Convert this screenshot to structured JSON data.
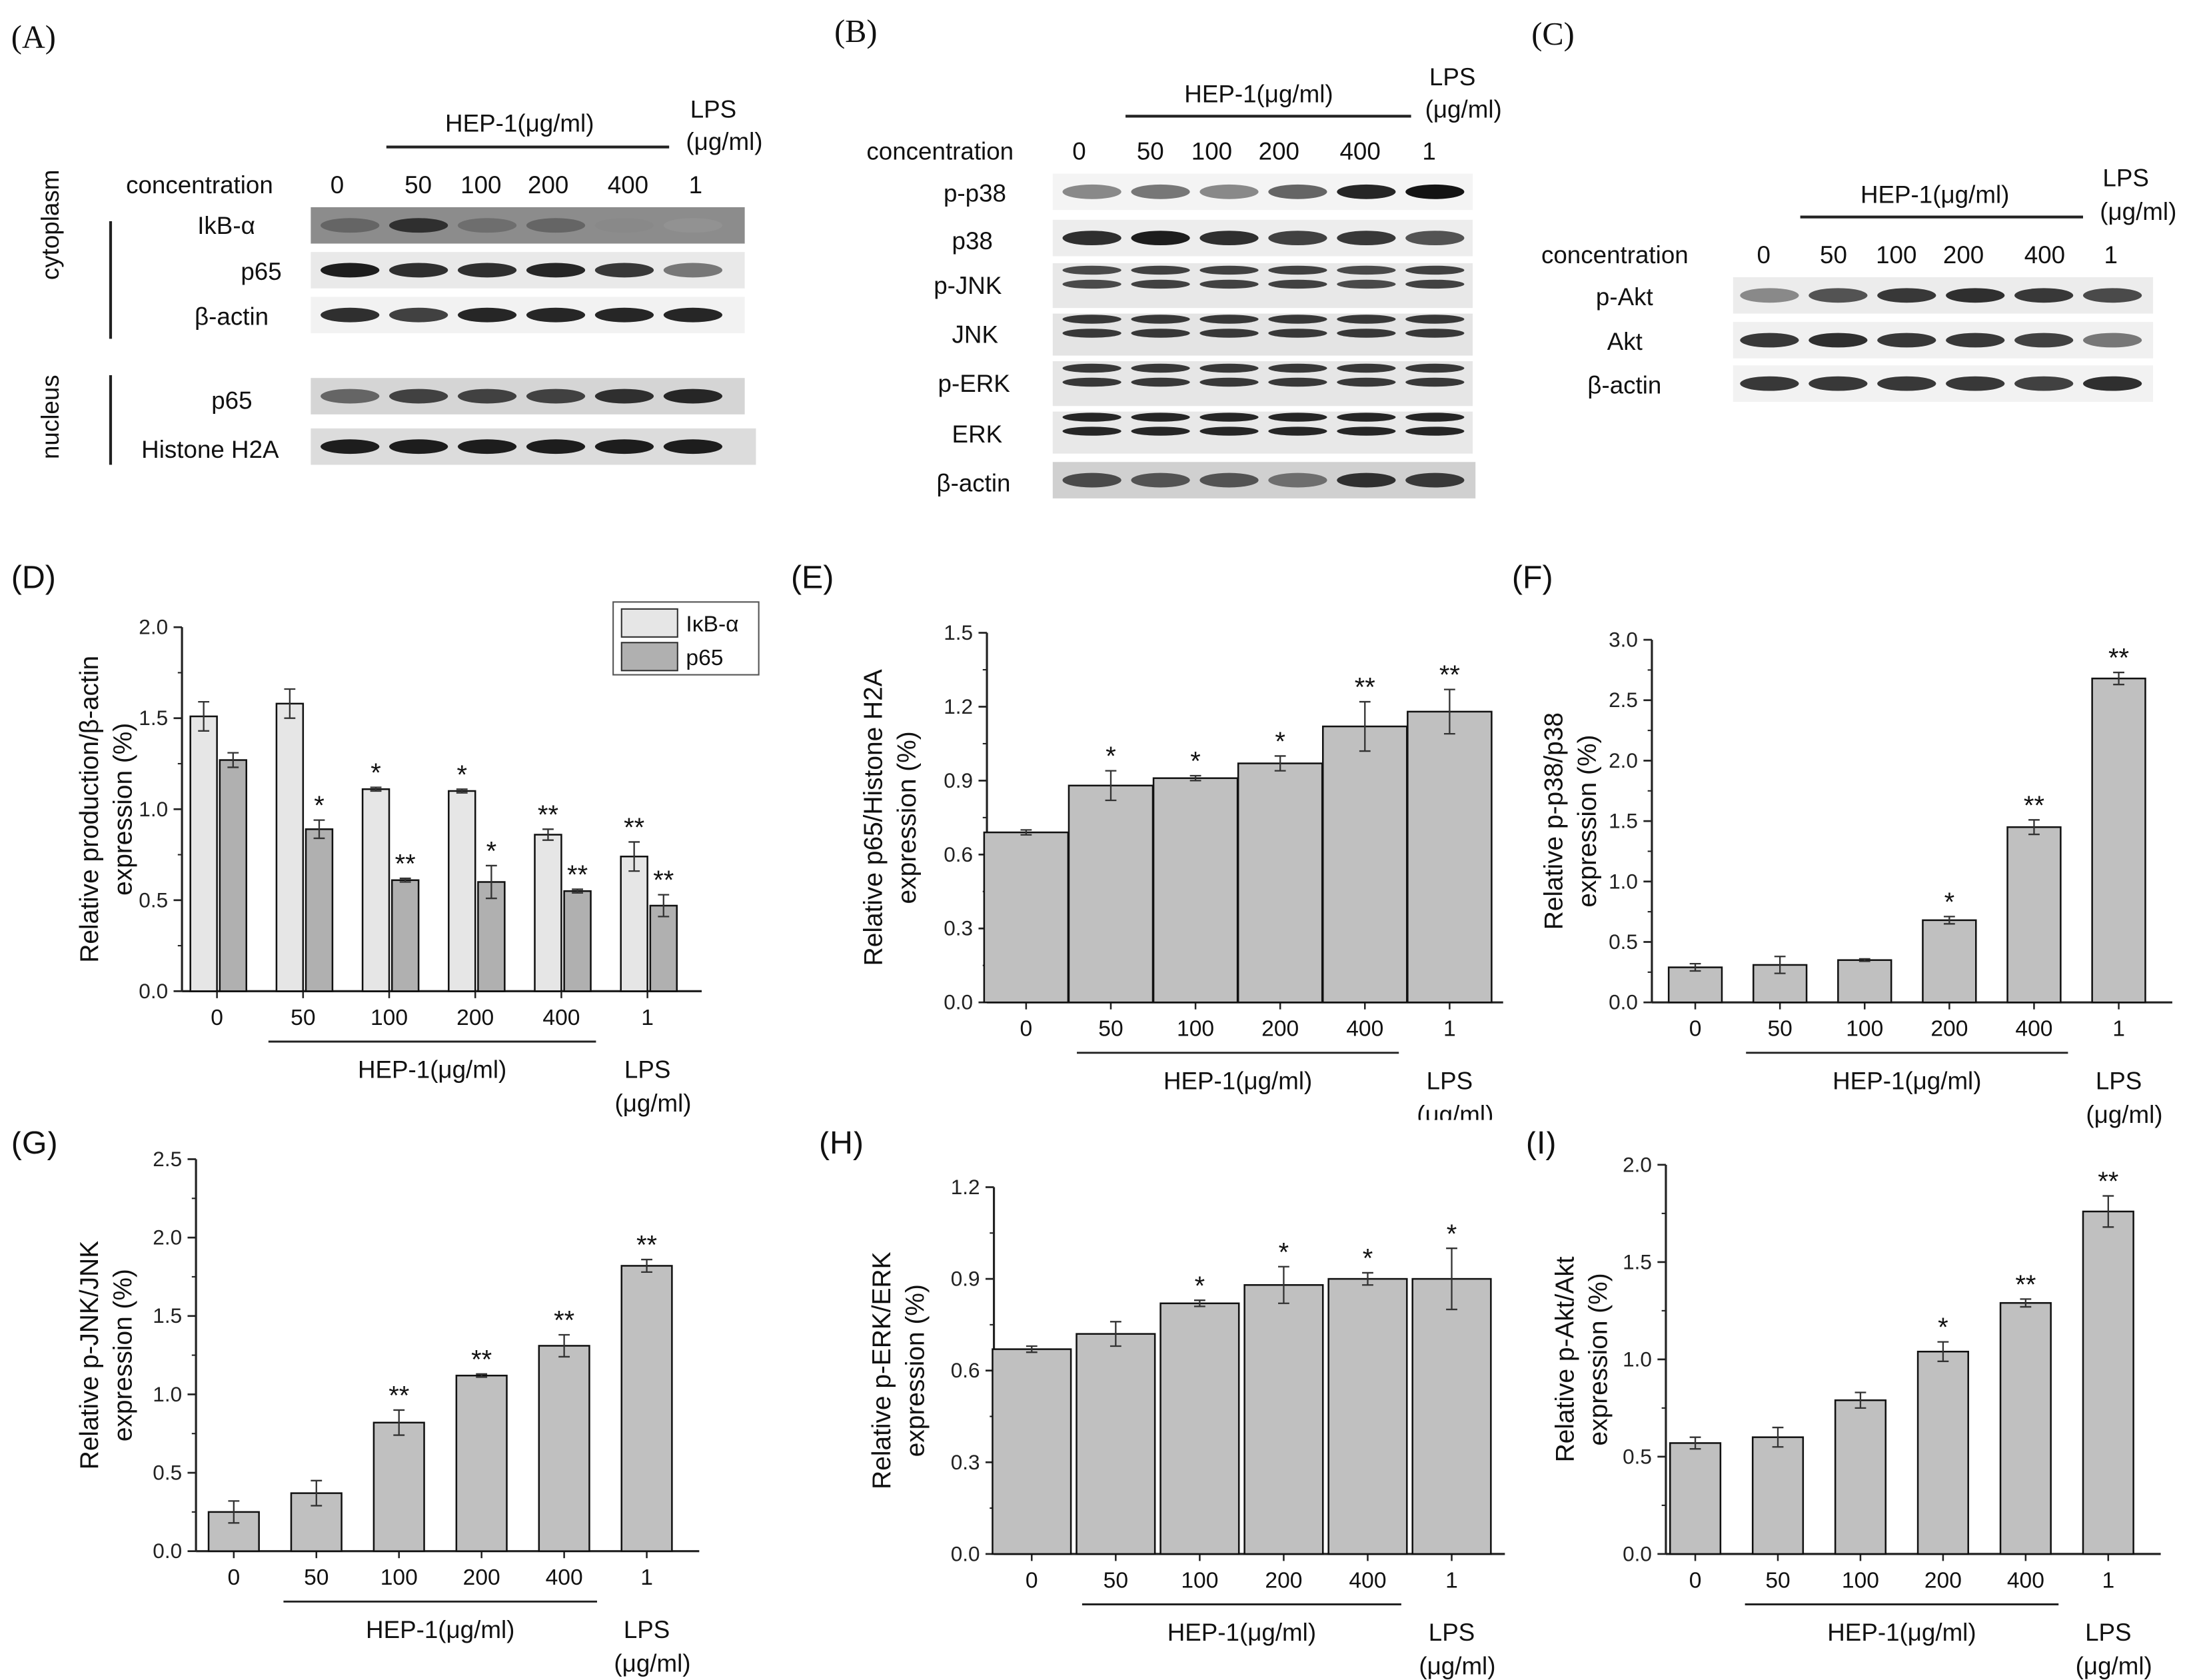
{
  "blot_a": {
    "panel": "(A)",
    "header": "HEP-1(μg/ml)",
    "lps_lines": [
      "LPS",
      "(μg/ml)"
    ],
    "row_title": "concentration",
    "conc": [
      "0",
      "50",
      "100",
      "200",
      "400",
      "1"
    ],
    "groups": [
      "cytoplasm",
      "nucleus"
    ],
    "bands": [
      "IkB-α",
      "p65",
      "β-actin",
      "p65",
      "Histone H2A"
    ]
  },
  "blot_b": {
    "panel": "(B)",
    "header": "HEP-1(μg/ml)",
    "lps_lines": [
      "LPS",
      "(μg/ml)"
    ],
    "row_title": "concentration",
    "conc": [
      "0",
      "50",
      "100",
      "200",
      "400",
      "1"
    ],
    "bands": [
      "p-p38",
      "p38",
      "p-JNK",
      "JNK",
      "p-ERK",
      "ERK",
      "β-actin"
    ]
  },
  "blot_c": {
    "panel": "(C)",
    "header": "HEP-1(μg/ml)",
    "lps_lines": [
      "LPS",
      "(μg/ml)"
    ],
    "row_title": "concentration",
    "conc": [
      "0",
      "50",
      "100",
      "200",
      "400",
      "1"
    ],
    "bands": [
      "p-Akt",
      "Akt",
      "β-actin"
    ]
  },
  "chart_data": [
    {
      "panel": "(D)",
      "type": "bar",
      "categories": [
        "0",
        "50",
        "100",
        "200",
        "400",
        "1"
      ],
      "group_label": "HEP-1(μg/ml)",
      "lps_lines": [
        "LPS",
        "(μg/ml)"
      ],
      "ylabel": [
        "Relative production/β-actin",
        "expression (%)"
      ],
      "ylim": [
        0,
        2.0
      ],
      "yticks": [
        "0.0",
        "0.5",
        "1.0",
        "1.5",
        "2.0"
      ],
      "series": [
        {
          "name": "IκB-α",
          "color": "#e6e6e6",
          "values": [
            1.51,
            1.58,
            1.11,
            1.1,
            0.86,
            0.74
          ],
          "errors": [
            0.08,
            0.08,
            0.01,
            0.01,
            0.03,
            0.08
          ],
          "sig": [
            "",
            "",
            "*",
            "*",
            "**",
            "**"
          ]
        },
        {
          "name": "p65",
          "color": "#b0b0b0",
          "values": [
            1.27,
            0.89,
            0.61,
            0.6,
            0.55,
            0.47
          ],
          "errors": [
            0.04,
            0.05,
            0.01,
            0.09,
            0.01,
            0.06
          ],
          "sig": [
            "",
            "*",
            "**",
            "*",
            "**",
            "**"
          ]
        }
      ]
    },
    {
      "panel": "(E)",
      "type": "bar",
      "categories": [
        "0",
        "50",
        "100",
        "200",
        "400",
        "1"
      ],
      "group_label": "HEP-1(μg/ml)",
      "lps_lines": [
        "LPS",
        "(μg/ml)"
      ],
      "ylabel": [
        "Relative p65/Histone H2A",
        "expression (%)"
      ],
      "ylim": [
        0,
        1.5
      ],
      "yticks": [
        "0.0",
        "0.3",
        "0.6",
        "0.9",
        "1.2",
        "1.5"
      ],
      "series": [
        {
          "name": "p65",
          "color": "#c0c0c0",
          "values": [
            0.69,
            0.88,
            0.91,
            0.97,
            1.12,
            1.18
          ],
          "errors": [
            0.01,
            0.06,
            0.01,
            0.03,
            0.1,
            0.09
          ],
          "sig": [
            "",
            "*",
            "*",
            "*",
            "**",
            "**"
          ]
        }
      ]
    },
    {
      "panel": "(F)",
      "type": "bar",
      "categories": [
        "0",
        "50",
        "100",
        "200",
        "400",
        "1"
      ],
      "group_label": "HEP-1(μg/ml)",
      "lps_lines": [
        "LPS",
        "(μg/ml)"
      ],
      "ylabel": [
        "Relative p-p38/p38",
        "expression (%)"
      ],
      "ylim": [
        0,
        3.0
      ],
      "yticks": [
        "0.0",
        "0.5",
        "1.0",
        "1.5",
        "2.0",
        "2.5",
        "3.0"
      ],
      "series": [
        {
          "name": "p-p38",
          "color": "#c0c0c0",
          "values": [
            0.29,
            0.31,
            0.35,
            0.68,
            1.45,
            2.68
          ],
          "errors": [
            0.03,
            0.07,
            0.01,
            0.03,
            0.06,
            0.05
          ],
          "sig": [
            "",
            "",
            "",
            "*",
            "**",
            "**"
          ]
        }
      ]
    },
    {
      "panel": "(G)",
      "type": "bar",
      "categories": [
        "0",
        "50",
        "100",
        "200",
        "400",
        "1"
      ],
      "group_label": "HEP-1(μg/ml)",
      "lps_lines": [
        "LPS",
        "(μg/ml)"
      ],
      "ylabel": [
        "Relative p-JNK/JNK",
        "expression (%)"
      ],
      "ylim": [
        0,
        2.5
      ],
      "yticks": [
        "0.0",
        "0.5",
        "1.0",
        "1.5",
        "2.0",
        "2.5"
      ],
      "series": [
        {
          "name": "p-JNK",
          "color": "#c0c0c0",
          "values": [
            0.25,
            0.37,
            0.82,
            1.12,
            1.31,
            1.82
          ],
          "errors": [
            0.07,
            0.08,
            0.08,
            0.01,
            0.07,
            0.04
          ],
          "sig": [
            "",
            "",
            "**",
            "**",
            "**",
            "**"
          ]
        }
      ]
    },
    {
      "panel": "(H)",
      "type": "bar",
      "categories": [
        "0",
        "50",
        "100",
        "200",
        "400",
        "1"
      ],
      "group_label": "HEP-1(μg/ml)",
      "lps_lines": [
        "LPS",
        "(μg/ml)"
      ],
      "ylabel": [
        "Relative p-ERK/ERK",
        "expression (%)"
      ],
      "ylim": [
        0,
        1.2
      ],
      "yticks": [
        "0.0",
        "0.3",
        "0.6",
        "0.9",
        "1.2"
      ],
      "series": [
        {
          "name": "p-ERK",
          "color": "#c0c0c0",
          "values": [
            0.67,
            0.72,
            0.82,
            0.88,
            0.9,
            0.9
          ],
          "errors": [
            0.01,
            0.04,
            0.01,
            0.06,
            0.02,
            0.1
          ],
          "sig": [
            "",
            "",
            "*",
            "*",
            "*",
            "*"
          ]
        }
      ]
    },
    {
      "panel": "(I)",
      "type": "bar",
      "categories": [
        "0",
        "50",
        "100",
        "200",
        "400",
        "1"
      ],
      "group_label": "HEP-1(μg/ml)",
      "lps_lines": [
        "LPS",
        "(μg/ml)"
      ],
      "ylabel": [
        "Relative p-Akt/Akt",
        "expression (%)"
      ],
      "ylim": [
        0,
        2.0
      ],
      "yticks": [
        "0.0",
        "0.5",
        "1.0",
        "1.5",
        "2.0"
      ],
      "series": [
        {
          "name": "p-Akt",
          "color": "#c0c0c0",
          "values": [
            0.57,
            0.6,
            0.79,
            1.04,
            1.29,
            1.76
          ],
          "errors": [
            0.03,
            0.05,
            0.04,
            0.05,
            0.02,
            0.08
          ],
          "sig": [
            "",
            "",
            "",
            "*",
            "**",
            "**"
          ]
        }
      ]
    }
  ]
}
